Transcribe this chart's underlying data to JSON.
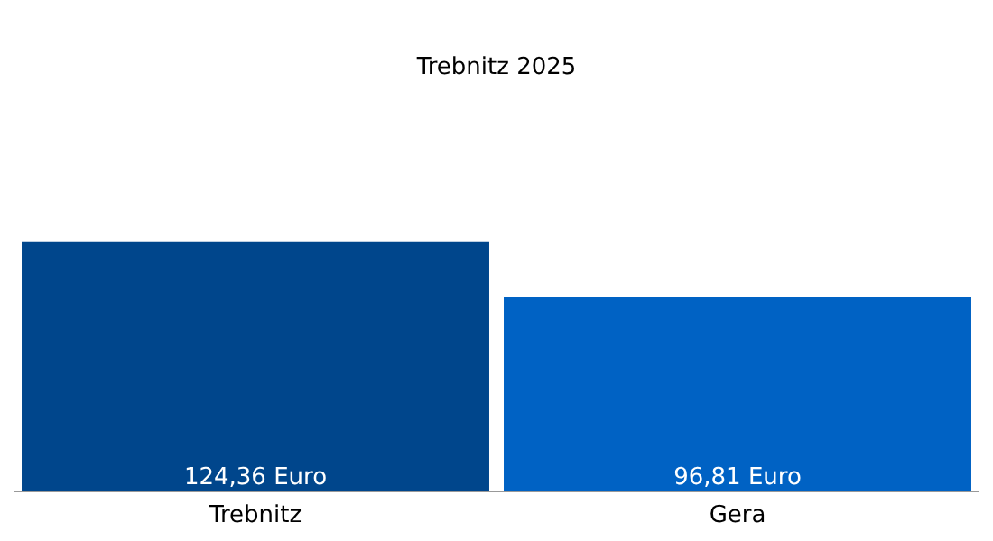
{
  "chart_data": {
    "type": "bar",
    "title": "Trebnitz 2025",
    "categories": [
      "Trebnitz",
      "Gera"
    ],
    "values": [
      124.36,
      96.81
    ],
    "colors": [
      "#00468c",
      "#0062c4"
    ],
    "value_labels": [
      "124,36 Euro",
      "96,81 Euro"
    ],
    "tick_labels": "x",
    "grid": false,
    "legend": false
  }
}
